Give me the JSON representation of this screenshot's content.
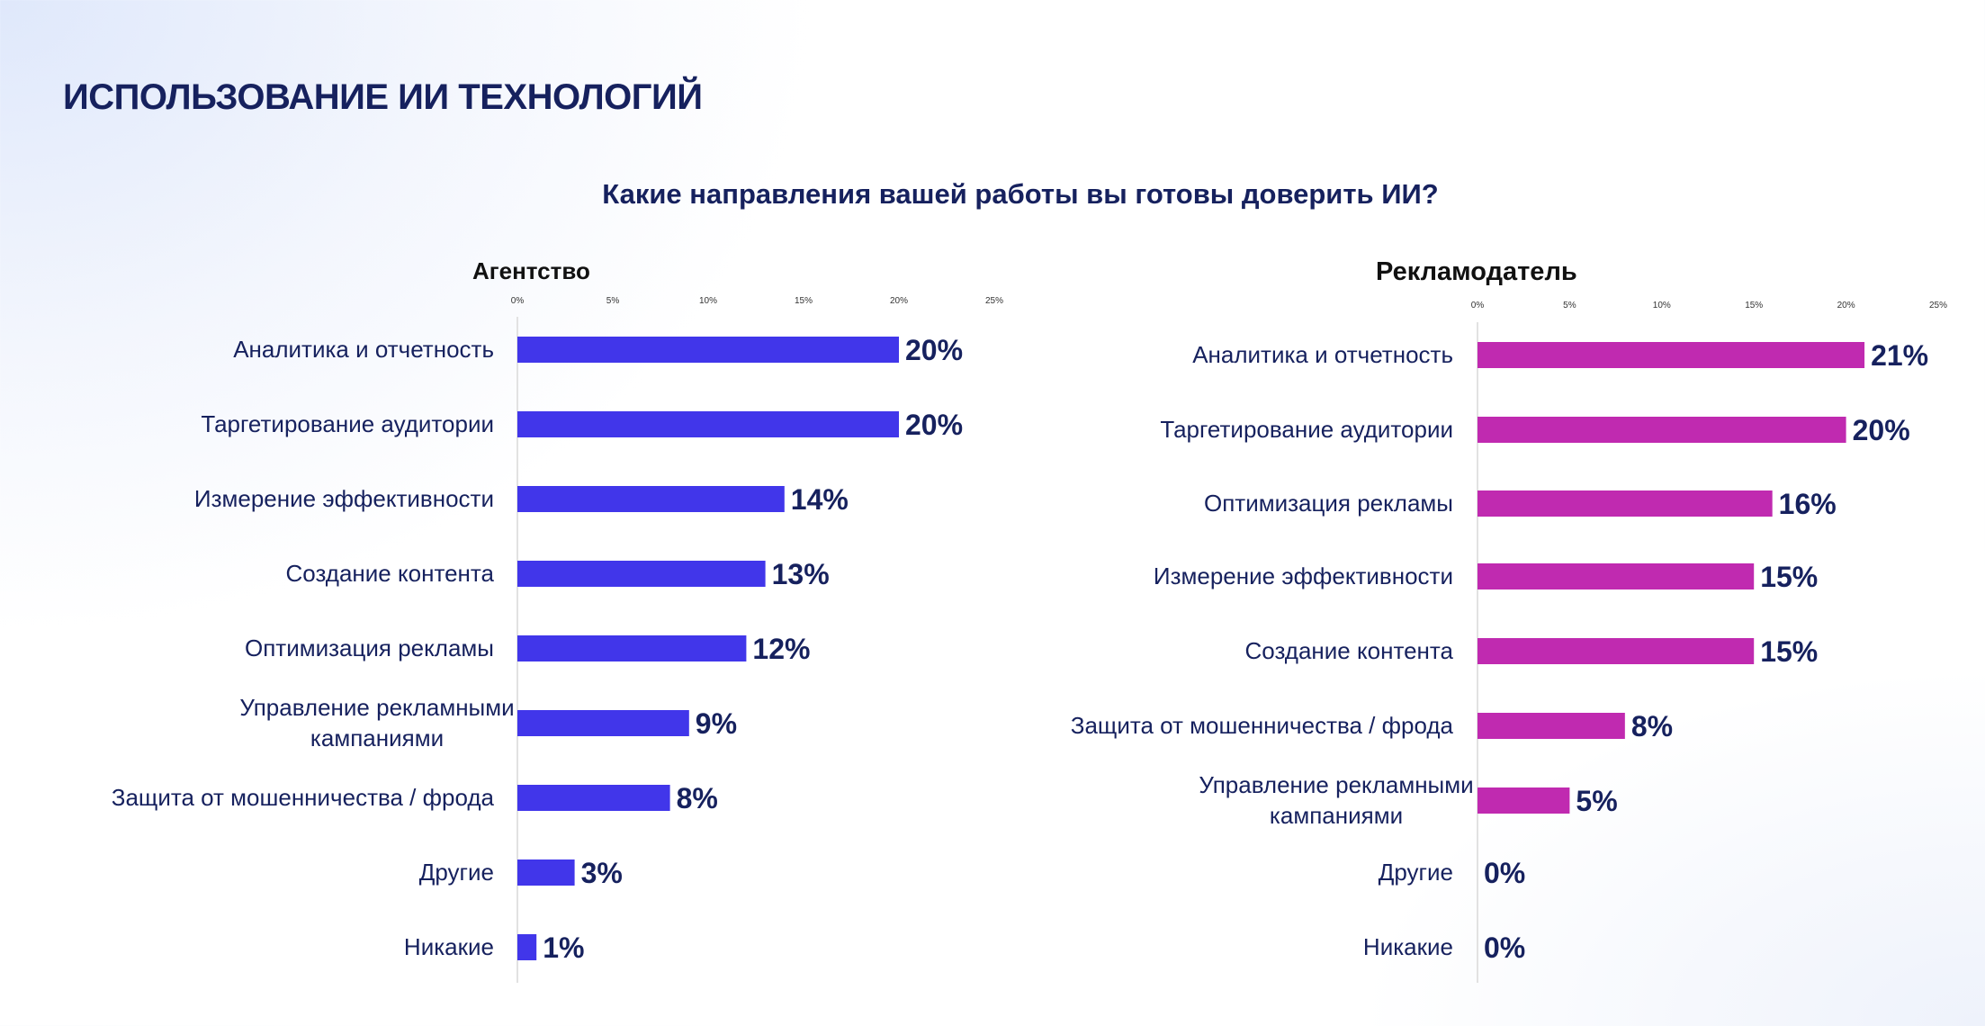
{
  "title": "ИСПОЛЬЗОВАНИЕ ИИ ТЕХНОЛОГИЙ",
  "subtitle": "Какие направления вашей работы вы готовы доверить ИИ?",
  "chart_data": [
    {
      "type": "bar",
      "orientation": "horizontal",
      "title": "Агентство",
      "color": "#4136EA",
      "xlim": [
        0,
        25
      ],
      "ticks": [
        "0%",
        "5%",
        "10%",
        "15%",
        "20%",
        "25%"
      ],
      "categories": [
        "Аналитика и отчетность",
        "Таргетирование аудитории",
        "Измерение эффективности",
        "Создание контента",
        "Оптимизация рекламы",
        "Управление рекламными кампаниями",
        "Защита от мошенничества / фрода",
        "Другие",
        "Никакие"
      ],
      "values": [
        20,
        20,
        14,
        13,
        12,
        9,
        8,
        3,
        1
      ],
      "labels": [
        "20%",
        "20%",
        "14%",
        "13%",
        "12%",
        "9%",
        "8%",
        "3%",
        "1%"
      ]
    },
    {
      "type": "bar",
      "orientation": "horizontal",
      "title": "Рекламодатель",
      "color": "#C02AB0",
      "xlim": [
        0,
        25
      ],
      "ticks": [
        "0%",
        "5%",
        "10%",
        "15%",
        "20%",
        "25%"
      ],
      "categories": [
        "Аналитика и отчетность",
        "Таргетирование аудитории",
        "Оптимизация рекламы",
        "Измерение эффективности",
        "Создание контента",
        "Защита от мошенничества / фрода",
        "Управление рекламными кампаниями",
        "Другие",
        "Никакие"
      ],
      "values": [
        21,
        20,
        16,
        15,
        15,
        8,
        5,
        0,
        0
      ],
      "labels": [
        "21%",
        "20%",
        "16%",
        "15%",
        "15%",
        "8%",
        "5%",
        "0%",
        "0%"
      ]
    }
  ]
}
